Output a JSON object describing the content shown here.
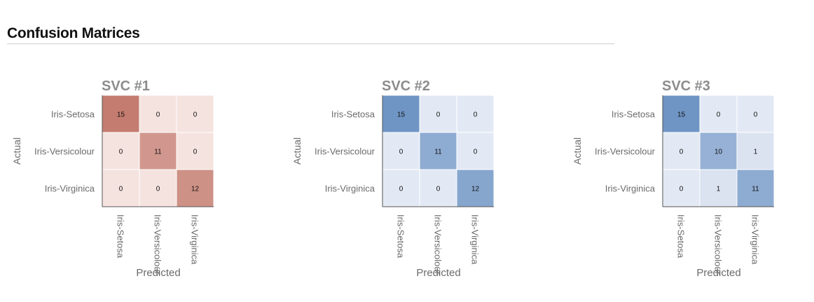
{
  "page": {
    "section_title": "Confusion Matrices"
  },
  "chart_data": [
    {
      "type": "heatmap",
      "title": "SVC #1",
      "xlabel": "Predicted",
      "ylabel": "Actual",
      "x_categories": [
        "Iris-Setosa",
        "Iris-Versicolour",
        "Iris-Virginica"
      ],
      "y_categories": [
        "Iris-Setosa",
        "Iris-Versicolour",
        "Iris-Virginica"
      ],
      "values": [
        [
          15,
          0,
          0
        ],
        [
          0,
          11,
          0
        ],
        [
          0,
          0,
          12
        ]
      ],
      "color_low": "#f5e3df",
      "color_high": "#c47c70"
    },
    {
      "type": "heatmap",
      "title": "SVC #2",
      "xlabel": "Predicted",
      "ylabel": "Actual",
      "x_categories": [
        "Iris-Setosa",
        "Iris-Versicolour",
        "Iris-Virginica"
      ],
      "y_categories": [
        "Iris-Setosa",
        "Iris-Versicolour",
        "Iris-Virginica"
      ],
      "values": [
        [
          15,
          0,
          0
        ],
        [
          0,
          11,
          0
        ],
        [
          0,
          0,
          12
        ]
      ],
      "color_low": "#e3e9f4",
      "color_high": "#6f95c5"
    },
    {
      "type": "heatmap",
      "title": "SVC #3",
      "xlabel": "Predicted",
      "ylabel": "Actual",
      "x_categories": [
        "Iris-Setosa",
        "Iris-Versicolour",
        "Iris-Virginica"
      ],
      "y_categories": [
        "Iris-Setosa",
        "Iris-Versicolour",
        "Iris-Virginica"
      ],
      "values": [
        [
          15,
          0,
          0
        ],
        [
          0,
          10,
          1
        ],
        [
          0,
          1,
          11
        ]
      ],
      "color_low": "#e3e9f4",
      "color_high": "#6f95c5"
    }
  ]
}
